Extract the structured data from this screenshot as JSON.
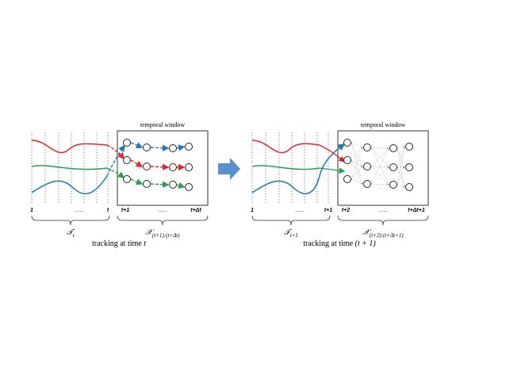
{
  "panels": [
    {
      "window_title": "temporal window",
      "history_ticks": [
        "1",
        "......",
        "t"
      ],
      "window_ticks": [
        "t+1",
        "......",
        "t+Δt"
      ],
      "history_label": {
        "symbol": "𝒯",
        "subscript": "t"
      },
      "window_label": {
        "symbol": "𝒳",
        "subscript": "(t+1):(t+Δt)"
      },
      "caption": {
        "text": "tracking at time",
        "math": "t"
      }
    },
    {
      "window_title": "temporal window",
      "history_ticks": [
        "1",
        "......",
        "t+1"
      ],
      "window_ticks": [
        "t+2",
        "......",
        "t+Δt+1"
      ],
      "history_label": {
        "symbol": "𝒯",
        "subscript": "t+1"
      },
      "window_label": {
        "symbol": "𝒳",
        "subscript": "(t+2):(t+Δt+1)"
      },
      "caption": {
        "text": "tracking at time",
        "math": "(t + 1)"
      }
    }
  ]
}
